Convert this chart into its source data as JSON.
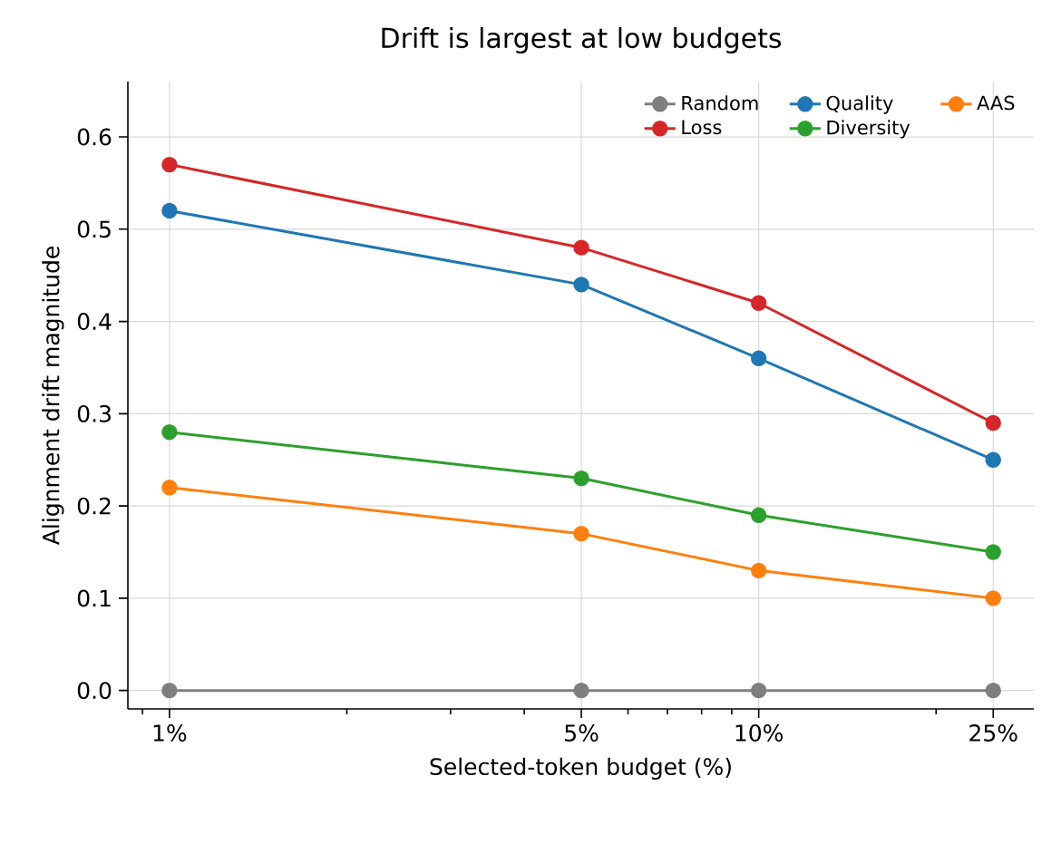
{
  "chart_data": {
    "type": "line",
    "title": "Drift is largest at low budgets",
    "xlabel": "Selected-token budget (%)",
    "ylabel": "Alignment drift magnitude",
    "x": [
      1,
      5,
      10,
      25
    ],
    "series": [
      {
        "name": "Random",
        "color": "#7f7f7f",
        "values": [
          0.0,
          0.0,
          0.0,
          0.0
        ]
      },
      {
        "name": "Loss",
        "color": "#d62728",
        "values": [
          0.57,
          0.48,
          0.42,
          0.29
        ]
      },
      {
        "name": "Quality",
        "color": "#1f77b4",
        "values": [
          0.52,
          0.44,
          0.36,
          0.25
        ]
      },
      {
        "name": "Diversity",
        "color": "#2ca02c",
        "values": [
          0.28,
          0.23,
          0.19,
          0.15
        ]
      },
      {
        "name": "AAS",
        "color": "#ff7f0e",
        "values": [
          0.22,
          0.17,
          0.13,
          0.1
        ]
      }
    ],
    "log": "x",
    "xlim": [
      0.85,
      29.3
    ],
    "ylim": [
      -0.02,
      0.66
    ],
    "xticks": [
      {
        "value": 1,
        "label": "1%"
      },
      {
        "value": 5,
        "label": "5%"
      },
      {
        "value": 10,
        "label": "10%"
      },
      {
        "value": 25,
        "label": "25%"
      }
    ],
    "yticks": [
      {
        "value": 0,
        "label": "0.0"
      },
      {
        "value": 0.1,
        "label": "0.1"
      },
      {
        "value": 0.2,
        "label": "0.2"
      },
      {
        "value": 0.3,
        "label": "0.3"
      },
      {
        "value": 0.4,
        "label": "0.4"
      },
      {
        "value": 0.5,
        "label": "0.5"
      },
      {
        "value": 0.6,
        "label": "0.6"
      }
    ],
    "grid": true,
    "legend": "top right",
    "marker": "circle",
    "line_style": "solid"
  }
}
